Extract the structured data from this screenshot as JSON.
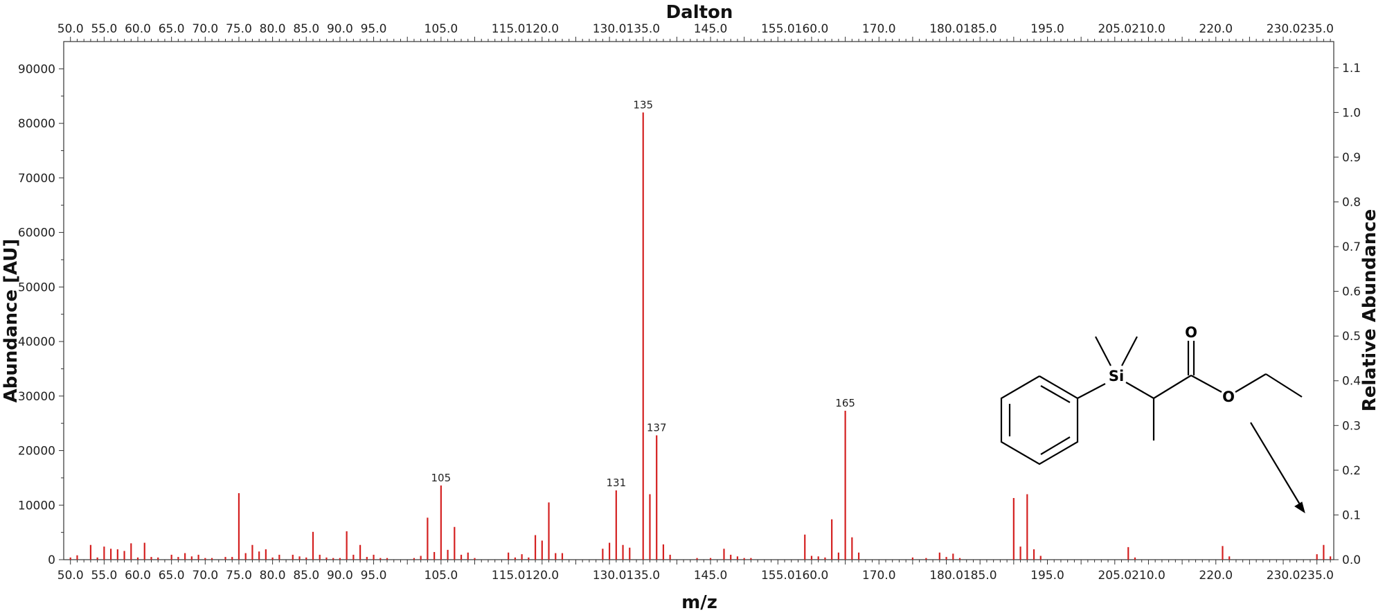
{
  "chart_data": {
    "type": "bar",
    "title": "",
    "top_axis_title": "Dalton",
    "xlabel": "m/z",
    "ylabel": "Abundance [AU]",
    "ylabel_right": "Relative Abundance",
    "xlim": [
      49,
      237.5
    ],
    "ylim": [
      0,
      95000
    ],
    "ylim_right": [
      0,
      1.155
    ],
    "right_scale_factor": 82000,
    "x_ticks": [
      {
        "value": 50,
        "label": "50.0"
      },
      {
        "value": 55,
        "label": "55.0"
      },
      {
        "value": 60,
        "label": "60.0"
      },
      {
        "value": 65,
        "label": "65.0"
      },
      {
        "value": 70,
        "label": "70.0"
      },
      {
        "value": 75,
        "label": "75.0"
      },
      {
        "value": 80,
        "label": "80.0"
      },
      {
        "value": 85,
        "label": "85.0"
      },
      {
        "value": 90,
        "label": "90.0"
      },
      {
        "value": 95,
        "label": "95.0"
      },
      {
        "value": 105,
        "label": "105.0"
      },
      {
        "value": 115,
        "label": "115.0"
      },
      {
        "value": 120,
        "label": "120.0"
      },
      {
        "value": 130,
        "label": "130.0"
      },
      {
        "value": 135,
        "label": "135.0"
      },
      {
        "value": 145,
        "label": "145.0"
      },
      {
        "value": 155,
        "label": "155.0"
      },
      {
        "value": 160,
        "label": "160.0"
      },
      {
        "value": 170,
        "label": "170.0"
      },
      {
        "value": 180,
        "label": "180.0"
      },
      {
        "value": 185,
        "label": "185.0"
      },
      {
        "value": 195,
        "label": "195.0"
      },
      {
        "value": 205,
        "label": "205.0"
      },
      {
        "value": 210,
        "label": "210.0"
      },
      {
        "value": 220,
        "label": "220.0"
      },
      {
        "value": 230,
        "label": "230.0"
      },
      {
        "value": 235,
        "label": "235.0"
      }
    ],
    "y_ticks": [
      {
        "value": 0,
        "label": "0"
      },
      {
        "value": 10000,
        "label": "10000"
      },
      {
        "value": 20000,
        "label": "20000"
      },
      {
        "value": 30000,
        "label": "30000"
      },
      {
        "value": 40000,
        "label": "40000"
      },
      {
        "value": 50000,
        "label": "50000"
      },
      {
        "value": 60000,
        "label": "60000"
      },
      {
        "value": 70000,
        "label": "70000"
      },
      {
        "value": 80000,
        "label": "80000"
      },
      {
        "value": 90000,
        "label": "90000"
      }
    ],
    "y_ticks_right": [
      {
        "value": 0.0,
        "label": "0.0"
      },
      {
        "value": 0.1,
        "label": "0.1"
      },
      {
        "value": 0.2,
        "label": "0.2"
      },
      {
        "value": 0.3,
        "label": "0.3"
      },
      {
        "value": 0.4,
        "label": "0.4"
      },
      {
        "value": 0.5,
        "label": "0.5"
      },
      {
        "value": 0.6,
        "label": "0.6"
      },
      {
        "value": 0.7,
        "label": "0.7"
      },
      {
        "value": 0.8,
        "label": "0.8"
      },
      {
        "value": 0.9,
        "label": "0.9"
      },
      {
        "value": 1.0,
        "label": "1.0"
      },
      {
        "value": 1.1,
        "label": "1.1"
      }
    ],
    "peaks": [
      {
        "mz": 50,
        "abundance": 400
      },
      {
        "mz": 51,
        "abundance": 800
      },
      {
        "mz": 53,
        "abundance": 2700
      },
      {
        "mz": 54,
        "abundance": 400
      },
      {
        "mz": 55,
        "abundance": 2400
      },
      {
        "mz": 56,
        "abundance": 2000
      },
      {
        "mz": 57,
        "abundance": 1900
      },
      {
        "mz": 58,
        "abundance": 1600
      },
      {
        "mz": 59,
        "abundance": 3000
      },
      {
        "mz": 60,
        "abundance": 400
      },
      {
        "mz": 61,
        "abundance": 3100
      },
      {
        "mz": 62,
        "abundance": 500
      },
      {
        "mz": 63,
        "abundance": 400
      },
      {
        "mz": 65,
        "abundance": 900
      },
      {
        "mz": 66,
        "abundance": 500
      },
      {
        "mz": 67,
        "abundance": 1200
      },
      {
        "mz": 68,
        "abundance": 600
      },
      {
        "mz": 69,
        "abundance": 900
      },
      {
        "mz": 70,
        "abundance": 300
      },
      {
        "mz": 71,
        "abundance": 300
      },
      {
        "mz": 73,
        "abundance": 500
      },
      {
        "mz": 74,
        "abundance": 500
      },
      {
        "mz": 75,
        "abundance": 12200
      },
      {
        "mz": 76,
        "abundance": 1200
      },
      {
        "mz": 77,
        "abundance": 2700
      },
      {
        "mz": 78,
        "abundance": 1500
      },
      {
        "mz": 79,
        "abundance": 1900
      },
      {
        "mz": 80,
        "abundance": 400
      },
      {
        "mz": 81,
        "abundance": 900
      },
      {
        "mz": 83,
        "abundance": 900
      },
      {
        "mz": 84,
        "abundance": 600
      },
      {
        "mz": 85,
        "abundance": 400
      },
      {
        "mz": 86,
        "abundance": 5100
      },
      {
        "mz": 87,
        "abundance": 900
      },
      {
        "mz": 88,
        "abundance": 400
      },
      {
        "mz": 89,
        "abundance": 300
      },
      {
        "mz": 90,
        "abundance": 300
      },
      {
        "mz": 91,
        "abundance": 5200
      },
      {
        "mz": 92,
        "abundance": 900
      },
      {
        "mz": 93,
        "abundance": 2700
      },
      {
        "mz": 94,
        "abundance": 500
      },
      {
        "mz": 95,
        "abundance": 900
      },
      {
        "mz": 96,
        "abundance": 300
      },
      {
        "mz": 97,
        "abundance": 300
      },
      {
        "mz": 101,
        "abundance": 300
      },
      {
        "mz": 102,
        "abundance": 700
      },
      {
        "mz": 103,
        "abundance": 7700
      },
      {
        "mz": 104,
        "abundance": 1400
      },
      {
        "mz": 105,
        "abundance": 13600,
        "label": "105"
      },
      {
        "mz": 106,
        "abundance": 1800
      },
      {
        "mz": 107,
        "abundance": 6000
      },
      {
        "mz": 108,
        "abundance": 900
      },
      {
        "mz": 109,
        "abundance": 1300
      },
      {
        "mz": 110,
        "abundance": 300
      },
      {
        "mz": 115,
        "abundance": 1300
      },
      {
        "mz": 116,
        "abundance": 400
      },
      {
        "mz": 117,
        "abundance": 1000
      },
      {
        "mz": 118,
        "abundance": 400
      },
      {
        "mz": 119,
        "abundance": 4500
      },
      {
        "mz": 120,
        "abundance": 3500
      },
      {
        "mz": 121,
        "abundance": 10500
      },
      {
        "mz": 122,
        "abundance": 1200
      },
      {
        "mz": 123,
        "abundance": 1200
      },
      {
        "mz": 129,
        "abundance": 2000
      },
      {
        "mz": 130,
        "abundance": 3100
      },
      {
        "mz": 131,
        "abundance": 12700,
        "label": "131"
      },
      {
        "mz": 132,
        "abundance": 2700
      },
      {
        "mz": 133,
        "abundance": 2200
      },
      {
        "mz": 135,
        "abundance": 82000,
        "label": "135"
      },
      {
        "mz": 136,
        "abundance": 12000
      },
      {
        "mz": 137,
        "abundance": 22800,
        "label": "137"
      },
      {
        "mz": 138,
        "abundance": 2800
      },
      {
        "mz": 139,
        "abundance": 900
      },
      {
        "mz": 143,
        "abundance": 300
      },
      {
        "mz": 145,
        "abundance": 300
      },
      {
        "mz": 147,
        "abundance": 2000
      },
      {
        "mz": 148,
        "abundance": 900
      },
      {
        "mz": 149,
        "abundance": 600
      },
      {
        "mz": 150,
        "abundance": 300
      },
      {
        "mz": 151,
        "abundance": 300
      },
      {
        "mz": 159,
        "abundance": 4600
      },
      {
        "mz": 160,
        "abundance": 700
      },
      {
        "mz": 161,
        "abundance": 600
      },
      {
        "mz": 162,
        "abundance": 400
      },
      {
        "mz": 163,
        "abundance": 7400
      },
      {
        "mz": 164,
        "abundance": 1300
      },
      {
        "mz": 165,
        "abundance": 27300,
        "label": "165"
      },
      {
        "mz": 166,
        "abundance": 4100
      },
      {
        "mz": 167,
        "abundance": 1300
      },
      {
        "mz": 175,
        "abundance": 400
      },
      {
        "mz": 177,
        "abundance": 300
      },
      {
        "mz": 179,
        "abundance": 1300
      },
      {
        "mz": 180,
        "abundance": 500
      },
      {
        "mz": 181,
        "abundance": 1100
      },
      {
        "mz": 182,
        "abundance": 300
      },
      {
        "mz": 190,
        "abundance": 11300
      },
      {
        "mz": 191,
        "abundance": 2400
      },
      {
        "mz": 192,
        "abundance": 12000
      },
      {
        "mz": 193,
        "abundance": 1900
      },
      {
        "mz": 194,
        "abundance": 700
      },
      {
        "mz": 207,
        "abundance": 2300
      },
      {
        "mz": 208,
        "abundance": 400
      },
      {
        "mz": 221,
        "abundance": 2500
      },
      {
        "mz": 222,
        "abundance": 600
      },
      {
        "mz": 235,
        "abundance": 1000
      },
      {
        "mz": 236,
        "abundance": 2700
      },
      {
        "mz": 237,
        "abundance": 600
      }
    ],
    "structure": {
      "atom_labels": [
        "Si",
        "O",
        "O"
      ]
    },
    "colors": {
      "peak": "#d42020",
      "axis": "#333333"
    },
    "grid": false
  }
}
